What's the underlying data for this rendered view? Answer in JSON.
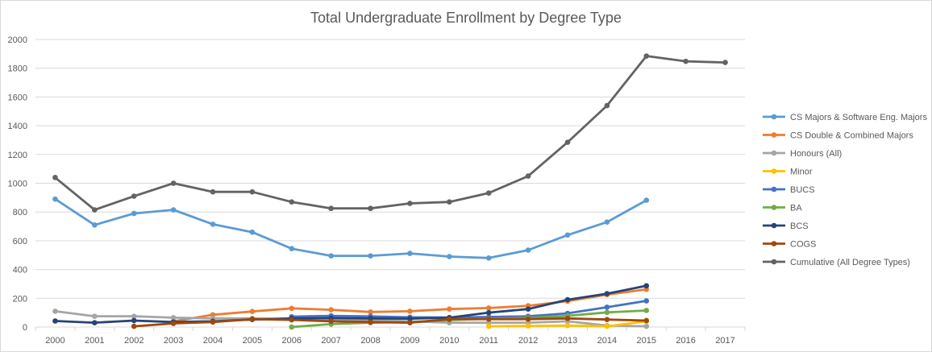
{
  "chart_data": {
    "type": "line",
    "title": "Total Undergraduate Enrollment by Degree Type",
    "xlabel": "",
    "ylabel": "",
    "x": [
      "2000",
      "2001",
      "2002",
      "2003",
      "2004",
      "2005",
      "2006",
      "2007",
      "2008",
      "2009",
      "2010",
      "2011",
      "2012",
      "2013",
      "2014",
      "2015",
      "2016",
      "2017"
    ],
    "ylim": [
      0,
      2000
    ],
    "yticks": [
      0,
      200,
      400,
      600,
      800,
      1000,
      1200,
      1400,
      1600,
      1800,
      2000
    ],
    "grid": true,
    "legend_position": "right",
    "series": [
      {
        "name": "CS Majors & Software Eng. Majors",
        "color": "#5b9bd5",
        "values": [
          890,
          710,
          790,
          815,
          715,
          660,
          545,
          495,
          495,
          512,
          490,
          480,
          535,
          640,
          730,
          882,
          null,
          null
        ]
      },
      {
        "name": "CS Double & Combined Majors",
        "color": "#ed7d31",
        "values": [
          null,
          null,
          null,
          40,
          85,
          108,
          130,
          120,
          105,
          110,
          125,
          132,
          148,
          180,
          225,
          262,
          null,
          null
        ]
      },
      {
        "name": "Honours (All)",
        "color": "#a5a5a5",
        "values": [
          110,
          75,
          75,
          65,
          60,
          60,
          55,
          50,
          50,
          40,
          30,
          30,
          30,
          40,
          10,
          5,
          null,
          null
        ]
      },
      {
        "name": "Minor",
        "color": "#ffc000",
        "values": [
          null,
          null,
          null,
          null,
          null,
          null,
          null,
          null,
          null,
          null,
          null,
          5,
          8,
          10,
          5,
          40,
          null,
          null
        ]
      },
      {
        "name": "BUCS",
        "color": "#4472c4",
        "values": [
          null,
          null,
          null,
          null,
          null,
          null,
          72,
          78,
          74,
          68,
          66,
          70,
          75,
          95,
          138,
          182,
          null,
          null
        ]
      },
      {
        "name": "BA",
        "color": "#70ad47",
        "values": [
          null,
          null,
          null,
          null,
          null,
          null,
          0,
          20,
          30,
          35,
          48,
          58,
          63,
          78,
          102,
          115,
          null,
          null
        ]
      },
      {
        "name": "BCS",
        "color": "#264478",
        "values": [
          42,
          30,
          45,
          35,
          40,
          52,
          60,
          62,
          60,
          58,
          65,
          100,
          125,
          190,
          232,
          287,
          null,
          null
        ]
      },
      {
        "name": "COGS",
        "color": "#9e480e",
        "values": [
          null,
          null,
          5,
          25,
          35,
          55,
          50,
          40,
          35,
          30,
          55,
          55,
          55,
          60,
          52,
          45,
          null,
          null
        ]
      },
      {
        "name": "Cumulative (All Degree Types)",
        "color": "#636363",
        "values": [
          1040,
          815,
          910,
          1000,
          940,
          940,
          870,
          825,
          825,
          860,
          870,
          932,
          1050,
          1285,
          1540,
          1885,
          1848,
          1840
        ]
      }
    ]
  }
}
